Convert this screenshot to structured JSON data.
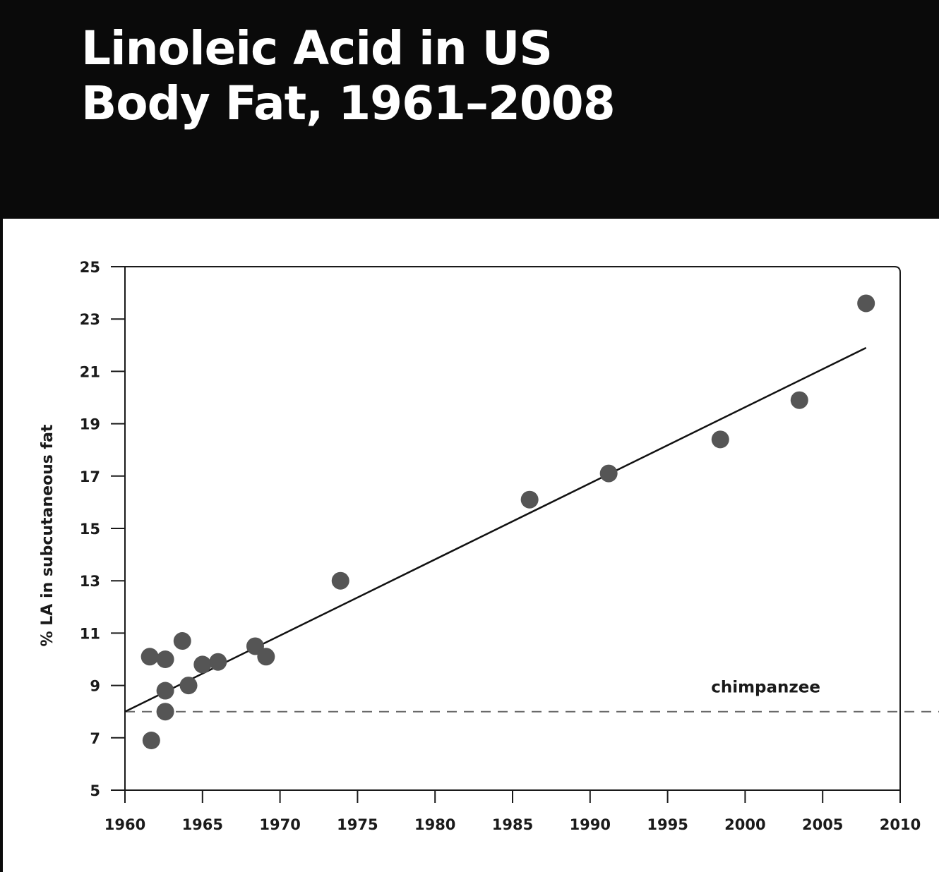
{
  "header": {
    "title_line1": "Linoleic Acid in US",
    "title_line2": "Body Fat, 1961–2008"
  },
  "chart_data": {
    "type": "scatter",
    "title": "Linoleic Acid in US Body Fat, 1961–2008",
    "xlabel": "",
    "ylabel": "% LA in subcutaneous fat",
    "xlim": [
      1960,
      2010
    ],
    "ylim": [
      5,
      25
    ],
    "x_ticks": [
      1960,
      1965,
      1970,
      1975,
      1980,
      1985,
      1990,
      1995,
      2000,
      2005,
      2010
    ],
    "y_ticks": [
      5,
      7,
      9,
      11,
      13,
      15,
      17,
      19,
      21,
      23,
      25
    ],
    "grid": false,
    "series": [
      {
        "points": [
          {
            "x": 1961.6,
            "y": 10.1
          },
          {
            "x": 1961.7,
            "y": 6.9
          },
          {
            "x": 1962.6,
            "y": 10.0
          },
          {
            "x": 1962.6,
            "y": 8.8
          },
          {
            "x": 1962.6,
            "y": 8.0
          },
          {
            "x": 1963.7,
            "y": 10.7
          },
          {
            "x": 1964.1,
            "y": 9.0
          },
          {
            "x": 1965.0,
            "y": 9.8
          },
          {
            "x": 1966.0,
            "y": 9.9
          },
          {
            "x": 1968.4,
            "y": 10.5
          },
          {
            "x": 1969.1,
            "y": 10.1
          },
          {
            "x": 1973.9,
            "y": 13.0
          },
          {
            "x": 1986.1,
            "y": 16.1
          },
          {
            "x": 1991.2,
            "y": 17.1
          },
          {
            "x": 1998.4,
            "y": 18.4
          },
          {
            "x": 2003.5,
            "y": 19.9
          },
          {
            "x": 2007.8,
            "y": 23.6
          }
        ],
        "color": "#555555"
      }
    ],
    "trendline": {
      "x": [
        1960,
        2007.8
      ],
      "y": [
        8.0,
        21.9
      ],
      "color": "#111111"
    },
    "reference_line": {
      "y": 8.0,
      "label": "chimpanzee",
      "style": "dashed"
    }
  }
}
